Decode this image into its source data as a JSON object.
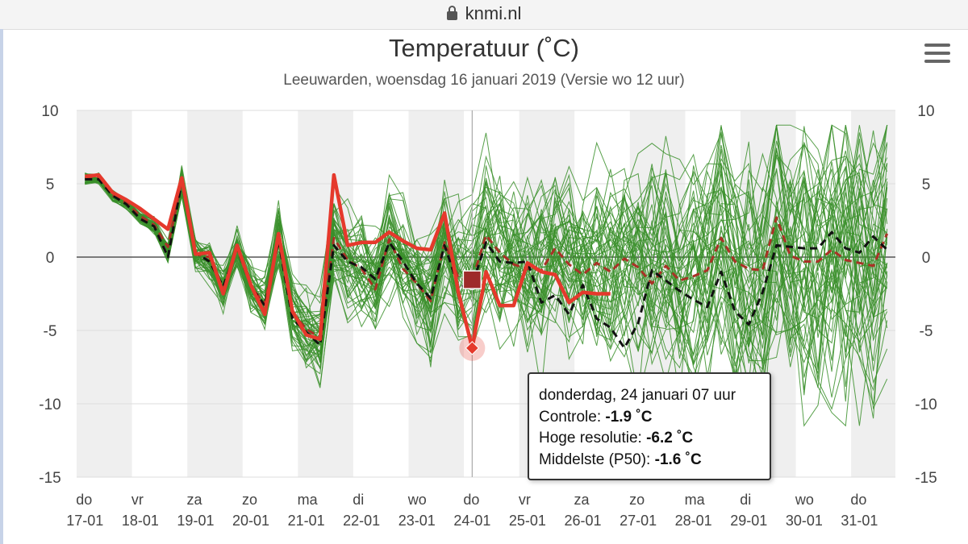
{
  "browser": {
    "url": "knmi.nl"
  },
  "header": {
    "title": "Temperatuur (˚C)",
    "subtitle": "Leeuwarden, woensdag 16 januari 2019 (Versie wo 12 uur)"
  },
  "tooltip": {
    "date": "donderdag, 24 januari 07 uur",
    "rows": [
      {
        "label": "Controle: ",
        "value": "-1.9 ˚C"
      },
      {
        "label": "Hoge resolutie: ",
        "value": "-6.2 ˚C"
      },
      {
        "label": "Middelste (P50): ",
        "value": "-1.6 ˚C"
      }
    ]
  },
  "chart_data": {
    "type": "line",
    "ylim": [
      -15,
      10
    ],
    "yticks": [
      "10",
      "5",
      "0",
      "-5",
      "-10",
      "-15"
    ],
    "ytick_values": [
      10,
      5,
      0,
      -5,
      -10,
      -15
    ],
    "days": [
      {
        "weekday": "do",
        "date": "17-01"
      },
      {
        "weekday": "vr",
        "date": "18-01"
      },
      {
        "weekday": "za",
        "date": "19-01"
      },
      {
        "weekday": "zo",
        "date": "20-01"
      },
      {
        "weekday": "ma",
        "date": "21-01"
      },
      {
        "weekday": "di",
        "date": "22-01"
      },
      {
        "weekday": "wo",
        "date": "23-01"
      },
      {
        "weekday": "do",
        "date": "24-01"
      },
      {
        "weekday": "vr",
        "date": "25-01"
      },
      {
        "weekday": "za",
        "date": "26-01"
      },
      {
        "weekday": "zo",
        "date": "27-01"
      },
      {
        "weekday": "ma",
        "date": "28-01"
      },
      {
        "weekday": "di",
        "date": "29-01"
      },
      {
        "weekday": "wo",
        "date": "30-01"
      },
      {
        "weekday": "do",
        "date": "31-01"
      }
    ],
    "x_range_days": [
      -0.15,
      14.65
    ],
    "series": [
      {
        "key": "hires",
        "color": "#e5392c",
        "x": [
          0,
          0.25,
          0.5,
          0.75,
          1,
          1.25,
          1.5,
          1.75,
          2,
          2.25,
          2.5,
          2.75,
          3,
          3.25,
          3.5,
          3.75,
          4,
          4.25,
          4.5,
          4.75,
          5,
          5.25,
          5.5,
          5.75,
          6,
          6.25,
          6.5,
          6.75,
          7,
          7.25,
          7.5,
          7.75,
          8,
          8.25,
          8.5,
          8.75,
          9,
          9.25,
          9.5
        ],
        "values": [
          5.5,
          5.6,
          4.4,
          3.9,
          3.3,
          2.6,
          1.9,
          5.4,
          0.2,
          0.3,
          -2.5,
          0.8,
          -1.9,
          -3.9,
          1.6,
          -3.7,
          -5.3,
          -5.6,
          5.6,
          0.8,
          1.0,
          1.0,
          1.7,
          1.1,
          0.6,
          0.5,
          3.0,
          -2.4,
          -6.2,
          -1.0,
          -3.3,
          -3.3,
          -0.4,
          -1.0,
          -1.2,
          -3.1,
          -2.4,
          -2.5,
          -2.5
        ]
      },
      {
        "key": "control",
        "color": "#111111",
        "x": [
          0,
          0.25,
          0.5,
          0.75,
          1,
          1.25,
          1.5,
          1.75,
          2,
          2.25,
          2.5,
          2.75,
          3,
          3.25,
          3.5,
          3.75,
          4,
          4.25,
          4.5,
          4.75,
          5,
          5.25,
          5.5,
          5.75,
          6,
          6.25,
          6.5,
          6.75,
          7,
          7.25,
          7.5,
          7.75,
          8,
          8.25,
          8.5,
          8.75,
          9,
          9.25,
          9.5,
          9.75,
          10,
          10.25,
          10.5,
          10.75,
          11,
          11.25,
          11.5,
          11.75,
          12,
          12.25,
          12.5,
          12.75,
          13,
          13.25,
          13.5,
          13.75,
          14,
          14.25,
          14.5
        ],
        "values": [
          5.3,
          5.3,
          4.2,
          3.6,
          2.6,
          2.1,
          0.0,
          5.1,
          0.3,
          -0.3,
          -2.0,
          0.6,
          -2.0,
          -3.3,
          1.1,
          -4.2,
          -5.1,
          -6.0,
          0.8,
          -0.3,
          -0.7,
          -1.5,
          1.0,
          -0.3,
          -1.8,
          -2.8,
          0.8,
          -2.0,
          -1.9,
          1.0,
          -0.3,
          -0.4,
          -0.3,
          -3.1,
          -2.6,
          -3.9,
          -1.9,
          -4.2,
          -4.8,
          -6.2,
          -4.5,
          -0.9,
          -1.6,
          -2.3,
          -2.9,
          -3.4,
          -1.0,
          -3.7,
          -4.6,
          -2.4,
          0.8,
          0.7,
          0.6,
          0.6,
          1.7,
          0.6,
          0.3,
          1.4,
          0.5
        ]
      },
      {
        "key": "median",
        "color": "#a93226",
        "x": [
          0,
          0.25,
          0.5,
          0.75,
          1,
          1.25,
          1.5,
          1.75,
          2,
          2.25,
          2.5,
          2.75,
          3,
          3.25,
          3.5,
          3.75,
          4,
          4.25,
          4.5,
          4.75,
          5,
          5.25,
          5.5,
          5.75,
          6,
          6.25,
          6.5,
          6.75,
          7,
          7.25,
          7.5,
          7.75,
          8,
          8.25,
          8.5,
          8.75,
          9,
          9.25,
          9.5,
          9.75,
          10,
          10.25,
          10.5,
          10.75,
          11,
          11.25,
          11.5,
          11.75,
          12,
          12.25,
          12.5,
          12.75,
          13,
          13.25,
          13.5,
          13.75,
          14,
          14.25,
          14.5
        ],
        "values": [
          5.4,
          5.4,
          4.2,
          3.7,
          2.8,
          2.2,
          0.7,
          5.2,
          0.2,
          0.0,
          -2.2,
          0.7,
          -2.0,
          -3.2,
          1.3,
          -3.8,
          -4.9,
          -5.5,
          1.3,
          -0.2,
          -0.8,
          -2.2,
          1.2,
          -0.8,
          -1.8,
          -3.0,
          1.0,
          -1.4,
          -1.6,
          1.5,
          0.3,
          -0.5,
          -0.8,
          -0.9,
          0.6,
          -0.5,
          -1.2,
          -0.4,
          -1.0,
          -0.1,
          -0.7,
          -1.8,
          -0.6,
          -1.6,
          -1.3,
          -0.9,
          1.3,
          -0.3,
          -0.8,
          -0.9,
          2.7,
          0.1,
          -0.3,
          -0.3,
          0.5,
          -0.2,
          -0.4,
          -0.6,
          1.6
        ]
      }
    ],
    "ensemble": {
      "members": 50,
      "color": "#3a8f2a",
      "x_step_days": 0.25
    },
    "highlight": {
      "x": 7.0,
      "hires": -6.2,
      "control": -1.9,
      "median": -1.6
    }
  }
}
